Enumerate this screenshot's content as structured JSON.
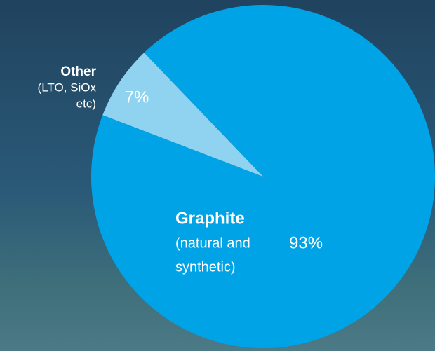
{
  "chart_data": {
    "type": "pie",
    "categories": [
      "Graphite",
      "Other"
    ],
    "descriptions": [
      [
        "(natural and",
        "synthetic)"
      ],
      [
        "(LTO, SiOx",
        "etc)"
      ]
    ],
    "values": [
      93,
      7
    ],
    "value_labels": [
      "93%",
      "7%"
    ],
    "colors": [
      "#00a3e6",
      "#8fd3f0"
    ]
  }
}
